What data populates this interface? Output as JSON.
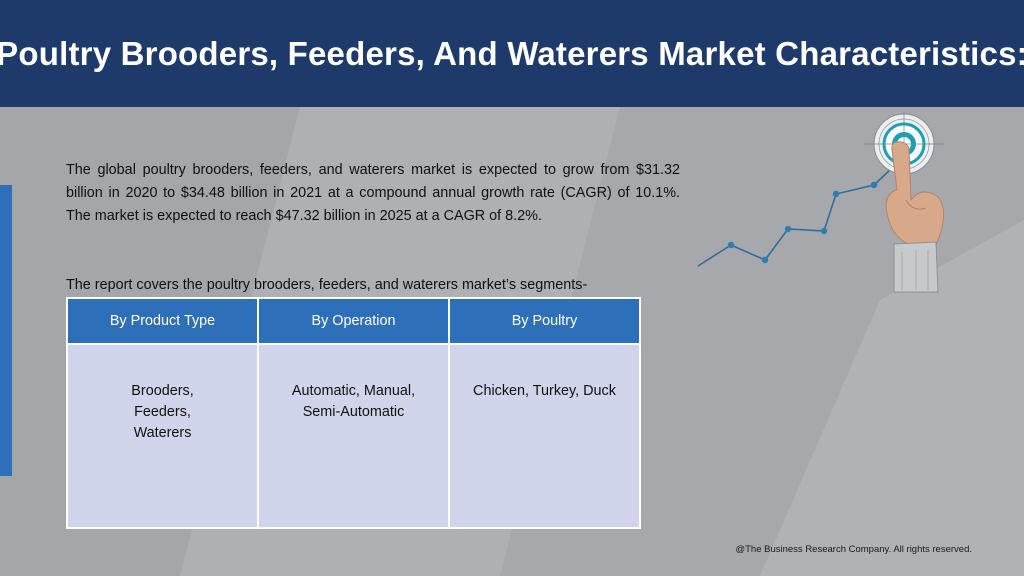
{
  "header": {
    "title": "Poultry Brooders, Feeders, And Waterers Market Characteristics:"
  },
  "body": {
    "intro": "The global poultry brooders, feeders, and waterers market is expected to grow from $31.32 billion in 2020 to $34.48 billion in 2021 at a compound annual growth rate (CAGR) of 10.1%. The market is expected to reach $47.32 billion in 2025 at a CAGR of 8.2%.",
    "segments_lead": "The report covers the poultry brooders, feeders, and waterers market’s segments-"
  },
  "segments_table": {
    "headers": [
      "By Product Type",
      "By Operation",
      "By Poultry"
    ],
    "cells": [
      "Brooders,\nFeeders,\nWaterers",
      "Automatic, Manual,\nSemi-Automatic",
      "Chicken, Turkey, Duck"
    ]
  },
  "illustration": {
    "icons": [
      "target-icon",
      "pointing-hand-icon",
      "rising-line-chart-icon"
    ],
    "colors": {
      "target_ring": "#1aa0b5",
      "line": "#2d6e9e"
    }
  },
  "footer": {
    "copyright": "@The Business Research Company. All rights reserved."
  },
  "colors": {
    "header_bg": "#1e3a6b",
    "accent": "#2e6fba",
    "table_header": "#2e6fba",
    "table_cell": "#d1d5eb",
    "page_bg": "#a9abae"
  }
}
